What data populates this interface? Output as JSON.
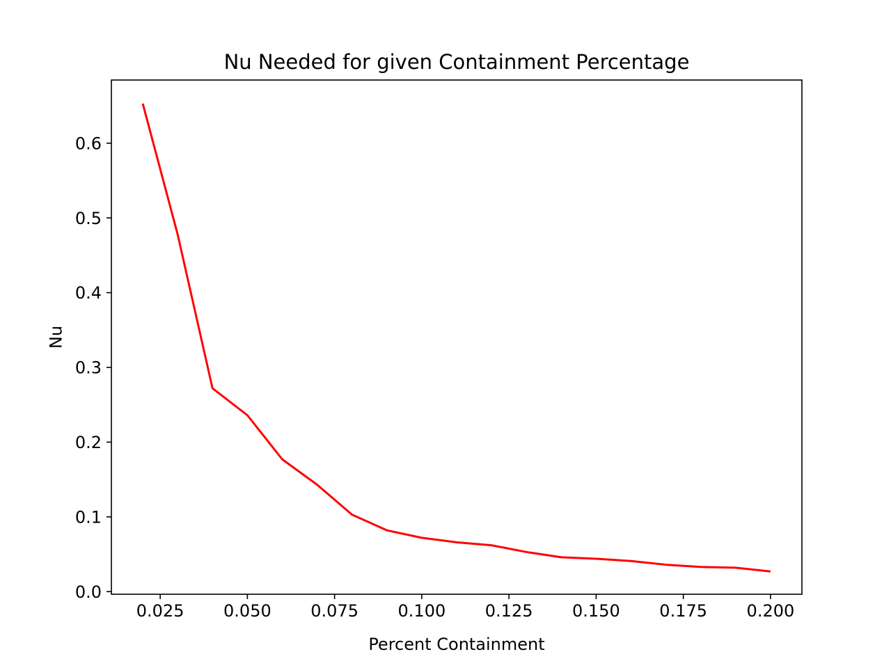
{
  "chart_data": {
    "type": "line",
    "title": "Nu Needed for given Containment Percentage",
    "xlabel": "Percent Containment",
    "ylabel": "Nu",
    "xlim": [
      0.011,
      0.209
    ],
    "ylim": [
      -0.0035,
      0.6845
    ],
    "xticks": [
      0.025,
      0.05,
      0.075,
      0.1,
      0.125,
      0.15,
      0.175,
      0.2
    ],
    "xtick_labels": [
      "0.025",
      "0.050",
      "0.075",
      "0.100",
      "0.125",
      "0.150",
      "0.175",
      "0.200"
    ],
    "yticks": [
      0.0,
      0.1,
      0.2,
      0.3,
      0.4,
      0.5,
      0.6
    ],
    "ytick_labels": [
      "0.0",
      "0.1",
      "0.2",
      "0.3",
      "0.4",
      "0.5",
      "0.6"
    ],
    "grid": false,
    "series": [
      {
        "color": "#ff0000",
        "x": [
          0.02,
          0.03,
          0.04,
          0.05,
          0.06,
          0.07,
          0.08,
          0.09,
          0.1,
          0.11,
          0.12,
          0.13,
          0.14,
          0.15,
          0.16,
          0.17,
          0.18,
          0.19,
          0.2
        ],
        "y": [
          0.653,
          0.478,
          0.272,
          0.236,
          0.177,
          0.143,
          0.103,
          0.082,
          0.072,
          0.066,
          0.062,
          0.053,
          0.046,
          0.044,
          0.041,
          0.036,
          0.033,
          0.032,
          0.027
        ]
      }
    ]
  }
}
